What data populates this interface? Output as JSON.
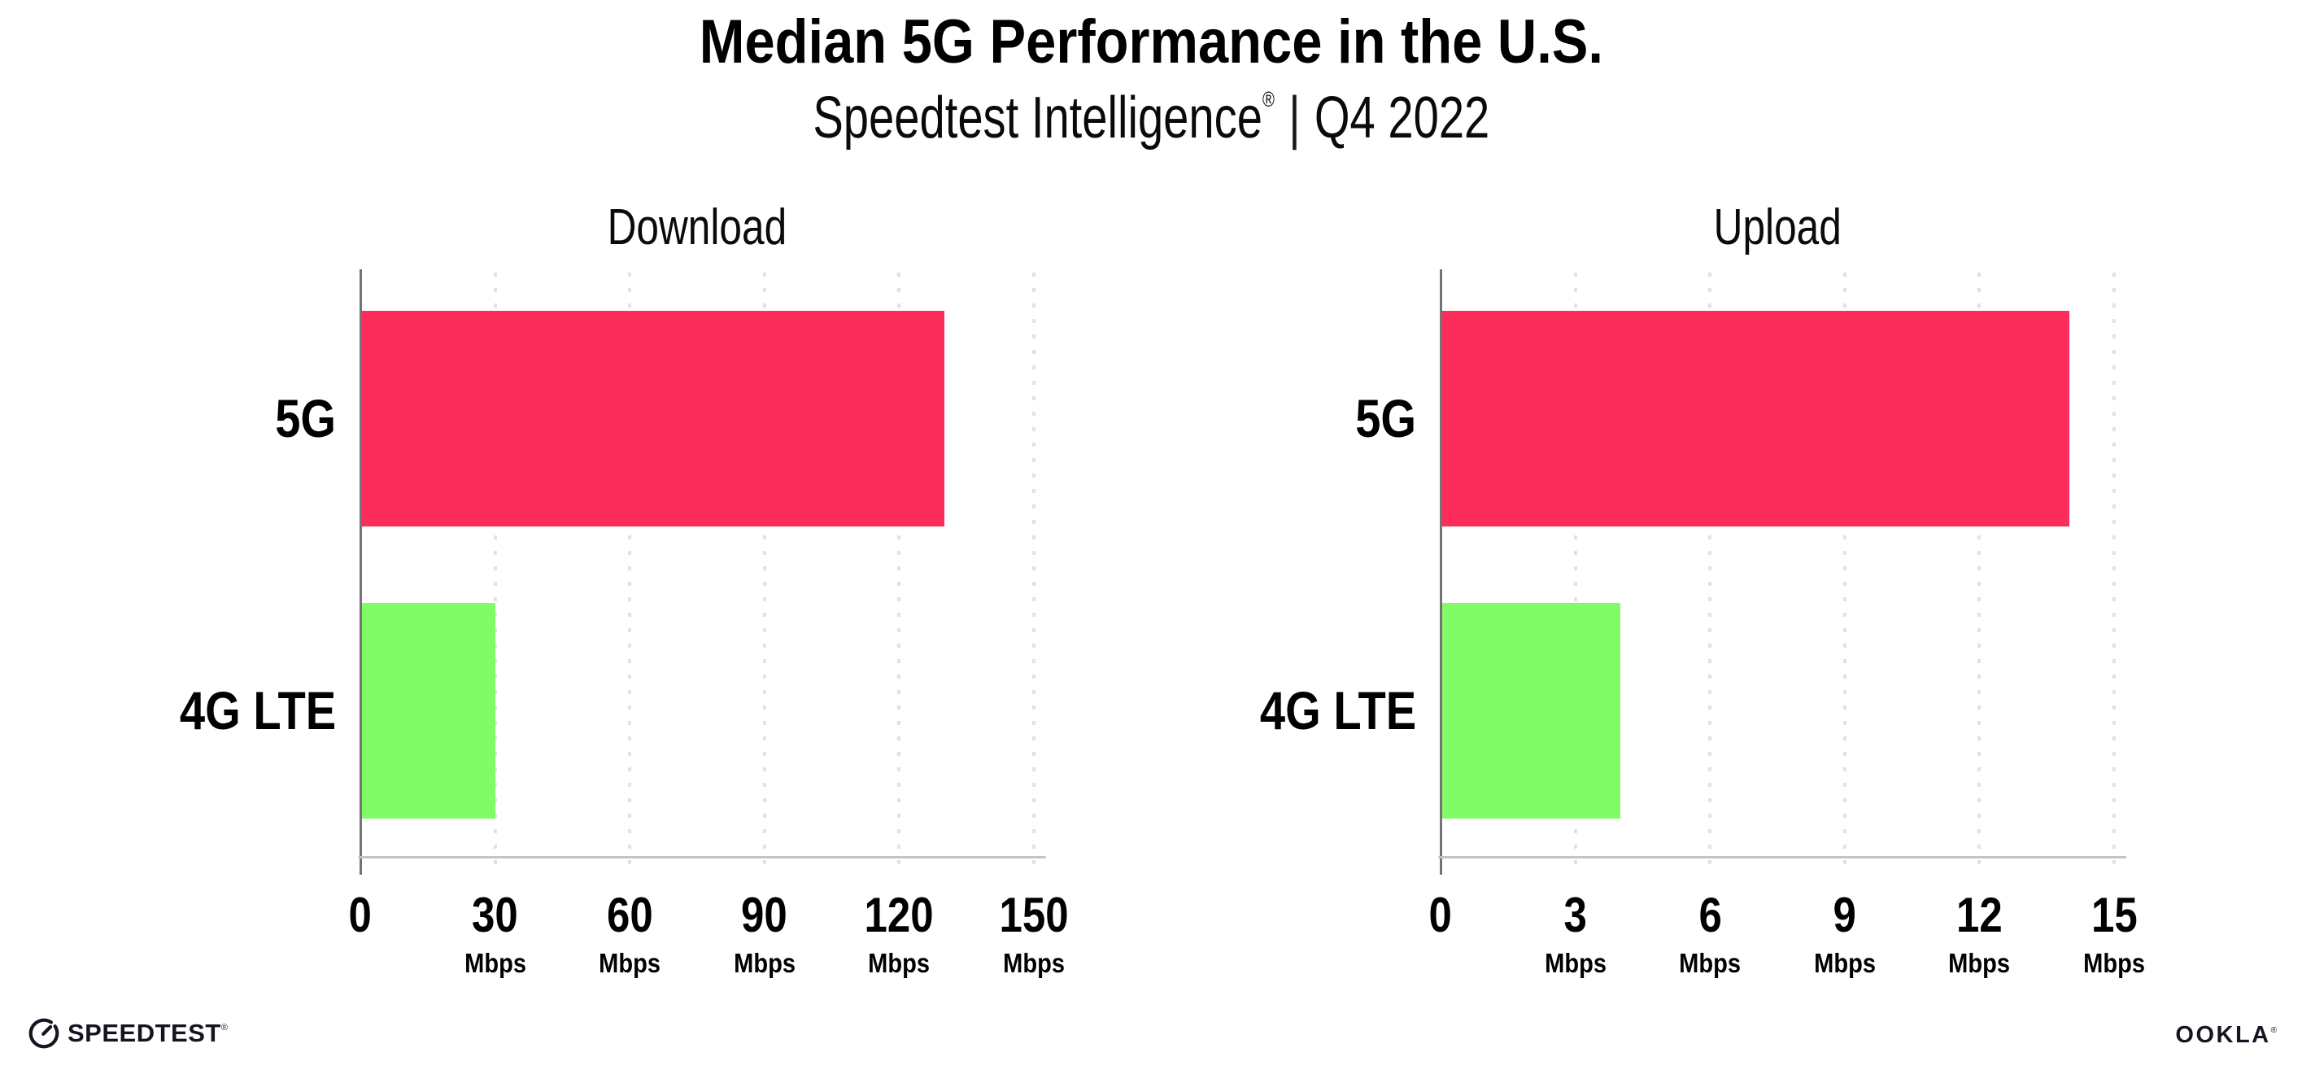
{
  "header": {
    "title": "Median 5G Performance in the U.S.",
    "subtitle": {
      "brand": "Speedtest Intelligence",
      "registered_mark": "®",
      "separator": "|",
      "period": "Q4 2022"
    }
  },
  "colors": {
    "bar_5g": "#FC2D5A",
    "bar_4g_lte": "#80FC66",
    "y_axis": "#737378",
    "x_axis": "#C2C2C8",
    "gridline": "#E1E1E9",
    "text": "#000000",
    "background": "#FFFFFF"
  },
  "chart_data": [
    {
      "type": "bar",
      "orientation": "horizontal",
      "id": "download",
      "title": "Download",
      "categories": [
        "5G",
        "4G LTE"
      ],
      "values": [
        130,
        30
      ],
      "unit": "Mbps",
      "xlim": [
        0,
        150
      ],
      "xticks": [
        0,
        30,
        60,
        90,
        120,
        150
      ],
      "grid": "dotted-vertical",
      "legend": "none",
      "bar_colors": [
        "#FC2D5A",
        "#80FC66"
      ]
    },
    {
      "type": "bar",
      "orientation": "horizontal",
      "id": "upload",
      "title": "Upload",
      "categories": [
        "5G",
        "4G LTE"
      ],
      "values": [
        14,
        4
      ],
      "unit": "Mbps",
      "xlim": [
        0,
        15
      ],
      "xticks": [
        0,
        3,
        6,
        9,
        12,
        15
      ],
      "grid": "dotted-vertical",
      "legend": "none",
      "bar_colors": [
        "#FC2D5A",
        "#80FC66"
      ]
    }
  ],
  "footer": {
    "speedtest_label": "SPEEDTEST",
    "speedtest_mark": "®",
    "speedtest_icon": "gauge-icon",
    "ookla_label": "OOKLA",
    "ookla_mark": "®"
  }
}
